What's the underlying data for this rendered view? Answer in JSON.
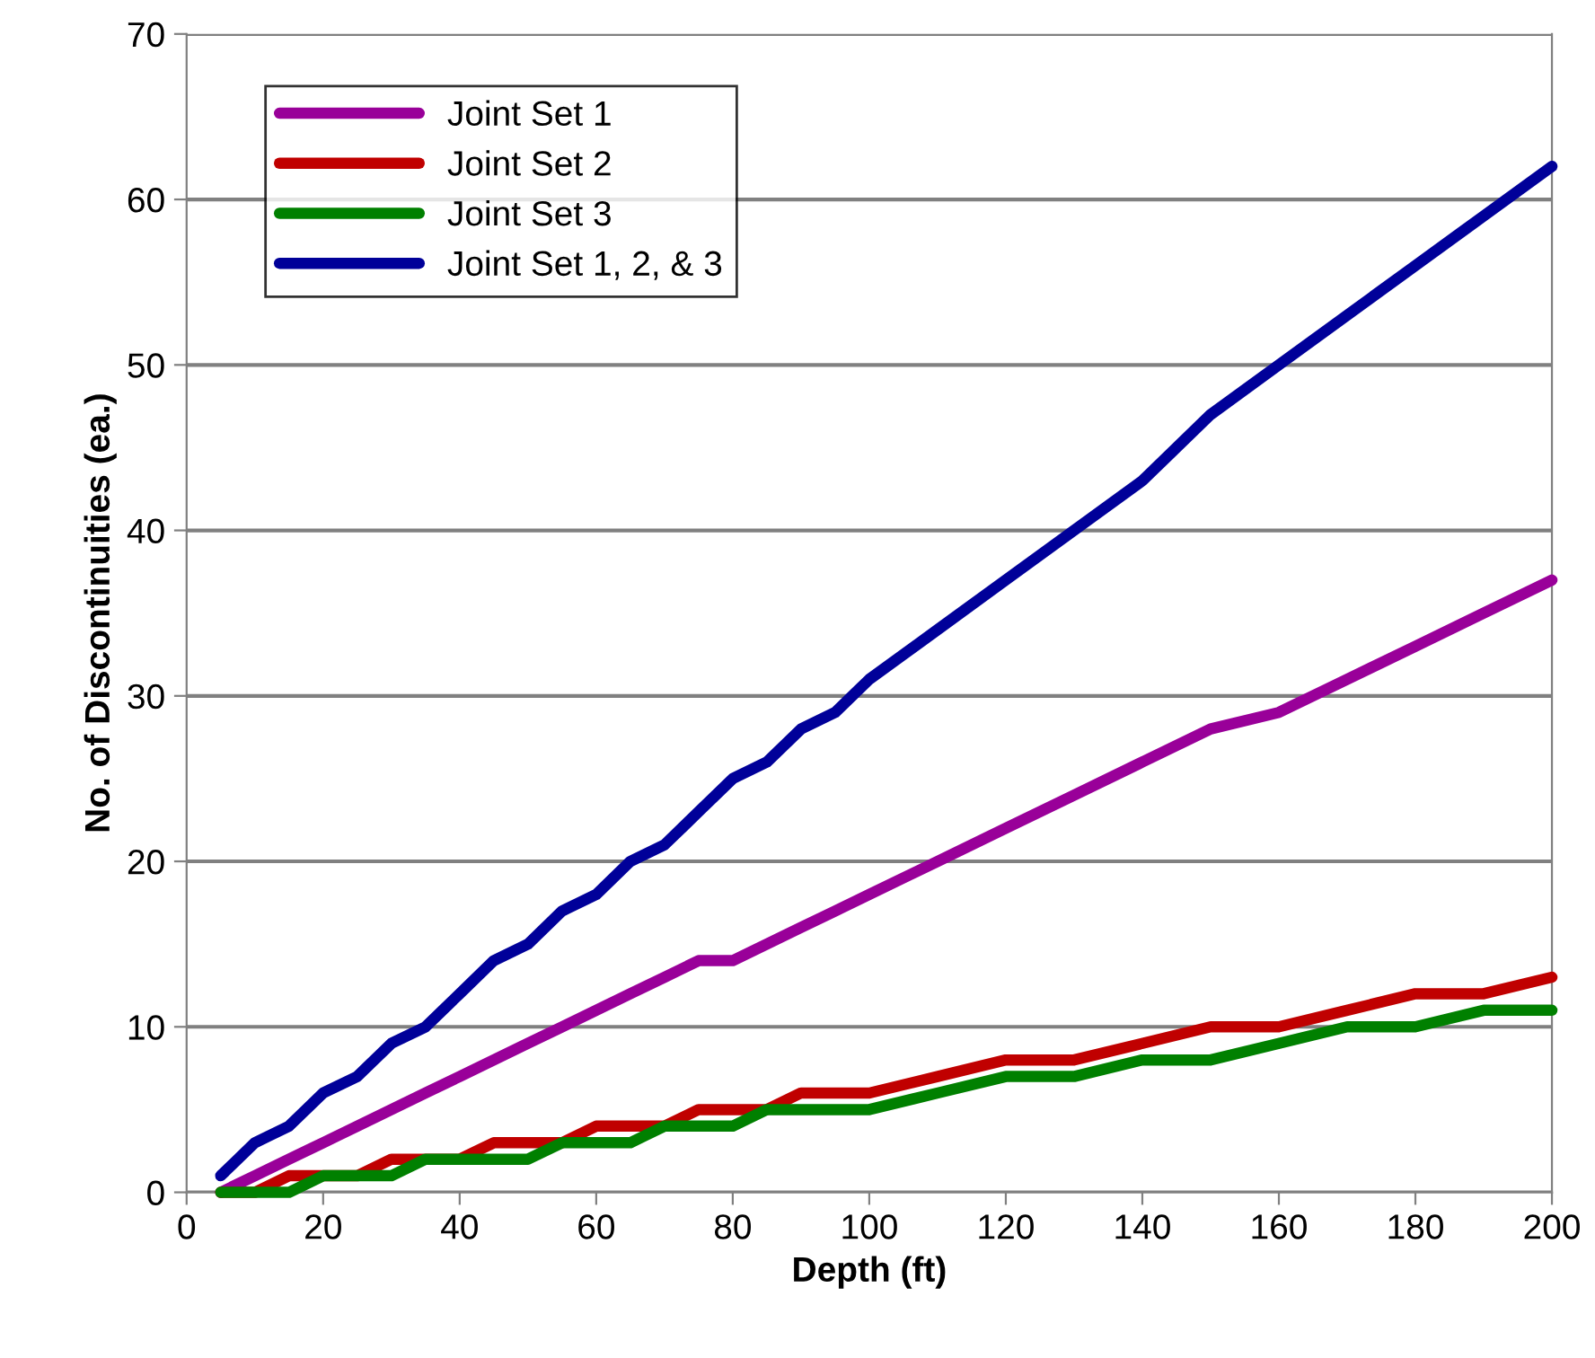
{
  "chart_data": {
    "type": "line",
    "xlabel": "Depth (ft)",
    "ylabel": "No. of Discontinuities (ea.)",
    "x": [
      5,
      10,
      15,
      20,
      25,
      30,
      35,
      40,
      45,
      50,
      55,
      60,
      65,
      70,
      75,
      80,
      85,
      90,
      95,
      100,
      110,
      120,
      130,
      140,
      150,
      160,
      170,
      180,
      190,
      200
    ],
    "series": [
      {
        "name": "Joint Set 1",
        "color": "#990099",
        "values": [
          0,
          1,
          2,
          3,
          4,
          5,
          6,
          7,
          8,
          9,
          10,
          11,
          12,
          13,
          14,
          14,
          15,
          16,
          17,
          18,
          20,
          22,
          24,
          26,
          28,
          29,
          31,
          33,
          35,
          37
        ]
      },
      {
        "name": "Joint Set 2",
        "color": "#c00000",
        "values": [
          0,
          0,
          1,
          1,
          1,
          2,
          2,
          2,
          3,
          3,
          3,
          4,
          4,
          4,
          5,
          5,
          5,
          6,
          6,
          6,
          7,
          8,
          8,
          9,
          10,
          10,
          11,
          12,
          12,
          13
        ]
      },
      {
        "name": "Joint Set 3",
        "color": "#008000",
        "values": [
          0,
          0,
          0,
          1,
          1,
          1,
          2,
          2,
          2,
          2,
          3,
          3,
          3,
          4,
          4,
          4,
          5,
          5,
          5,
          5,
          6,
          7,
          7,
          8,
          8,
          9,
          10,
          10,
          11,
          11
        ]
      },
      {
        "name": "Joint Set 1, 2, & 3",
        "color": "#000099",
        "values": [
          1,
          3,
          4,
          6,
          7,
          9,
          10,
          12,
          14,
          15,
          17,
          18,
          20,
          21,
          23,
          25,
          26,
          28,
          29,
          31,
          34,
          37,
          40,
          43,
          47,
          50,
          53,
          56,
          59,
          62
        ]
      }
    ],
    "xlim": [
      0,
      200
    ],
    "xticks": [
      0,
      20,
      40,
      60,
      80,
      100,
      120,
      140,
      160,
      180,
      200
    ],
    "ylim": [
      0,
      70
    ],
    "yticks": [
      0,
      10,
      20,
      30,
      40,
      50,
      60,
      70
    ],
    "grid": "y",
    "legend": "top left",
    "marker": "none",
    "line_style": "solid"
  }
}
